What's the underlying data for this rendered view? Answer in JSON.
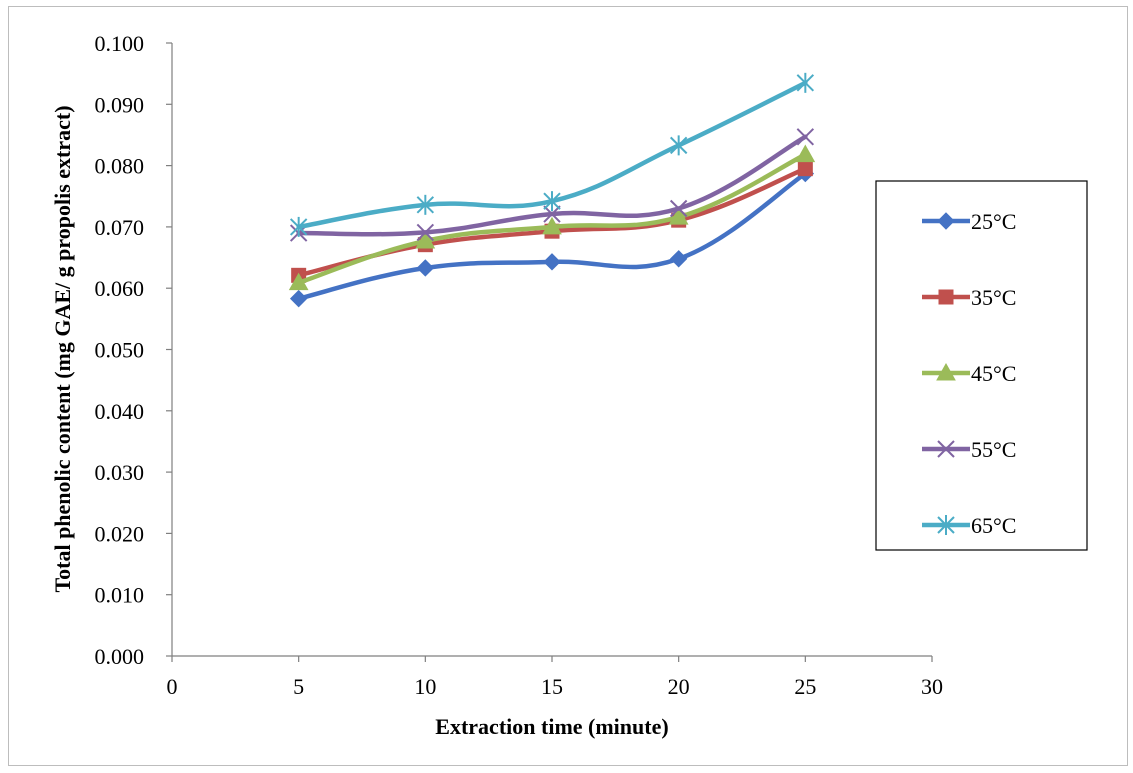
{
  "chart_data": {
    "type": "line",
    "title": "",
    "xlabel": "Extraction time (minute)",
    "ylabel": "Total phenolic content (mg GAE/ g propolis extract)",
    "xlim": [
      0,
      30
    ],
    "ylim": [
      0,
      0.1
    ],
    "x_ticks": [
      "0",
      "5",
      "10",
      "15",
      "20",
      "25",
      "30"
    ],
    "y_ticks": [
      "0.000",
      "0.010",
      "0.020",
      "0.030",
      "0.040",
      "0.050",
      "0.060",
      "0.070",
      "0.080",
      "0.090",
      "0.100"
    ],
    "grid": false,
    "legend_position": "right",
    "x": [
      5,
      10,
      15,
      20,
      25
    ],
    "series": [
      {
        "name": "25°C",
        "values": [
          0.0583,
          0.0633,
          0.0643,
          0.0648,
          0.0787
        ],
        "color": "#4472C4",
        "marker": "diamond"
      },
      {
        "name": "35°C",
        "values": [
          0.0621,
          0.0671,
          0.0693,
          0.0711,
          0.0795
        ],
        "color": "#C0504D",
        "marker": "square"
      },
      {
        "name": "45°C",
        "values": [
          0.0609,
          0.0677,
          0.07,
          0.0716,
          0.0818
        ],
        "color": "#9BBB59",
        "marker": "triangle"
      },
      {
        "name": "55°C",
        "values": [
          0.069,
          0.0691,
          0.0721,
          0.073,
          0.0847
        ],
        "color": "#8064A2",
        "marker": "x"
      },
      {
        "name": "65°C",
        "values": [
          0.07,
          0.0736,
          0.0742,
          0.0833,
          0.0935
        ],
        "color": "#4BACC6",
        "marker": "star"
      }
    ]
  }
}
